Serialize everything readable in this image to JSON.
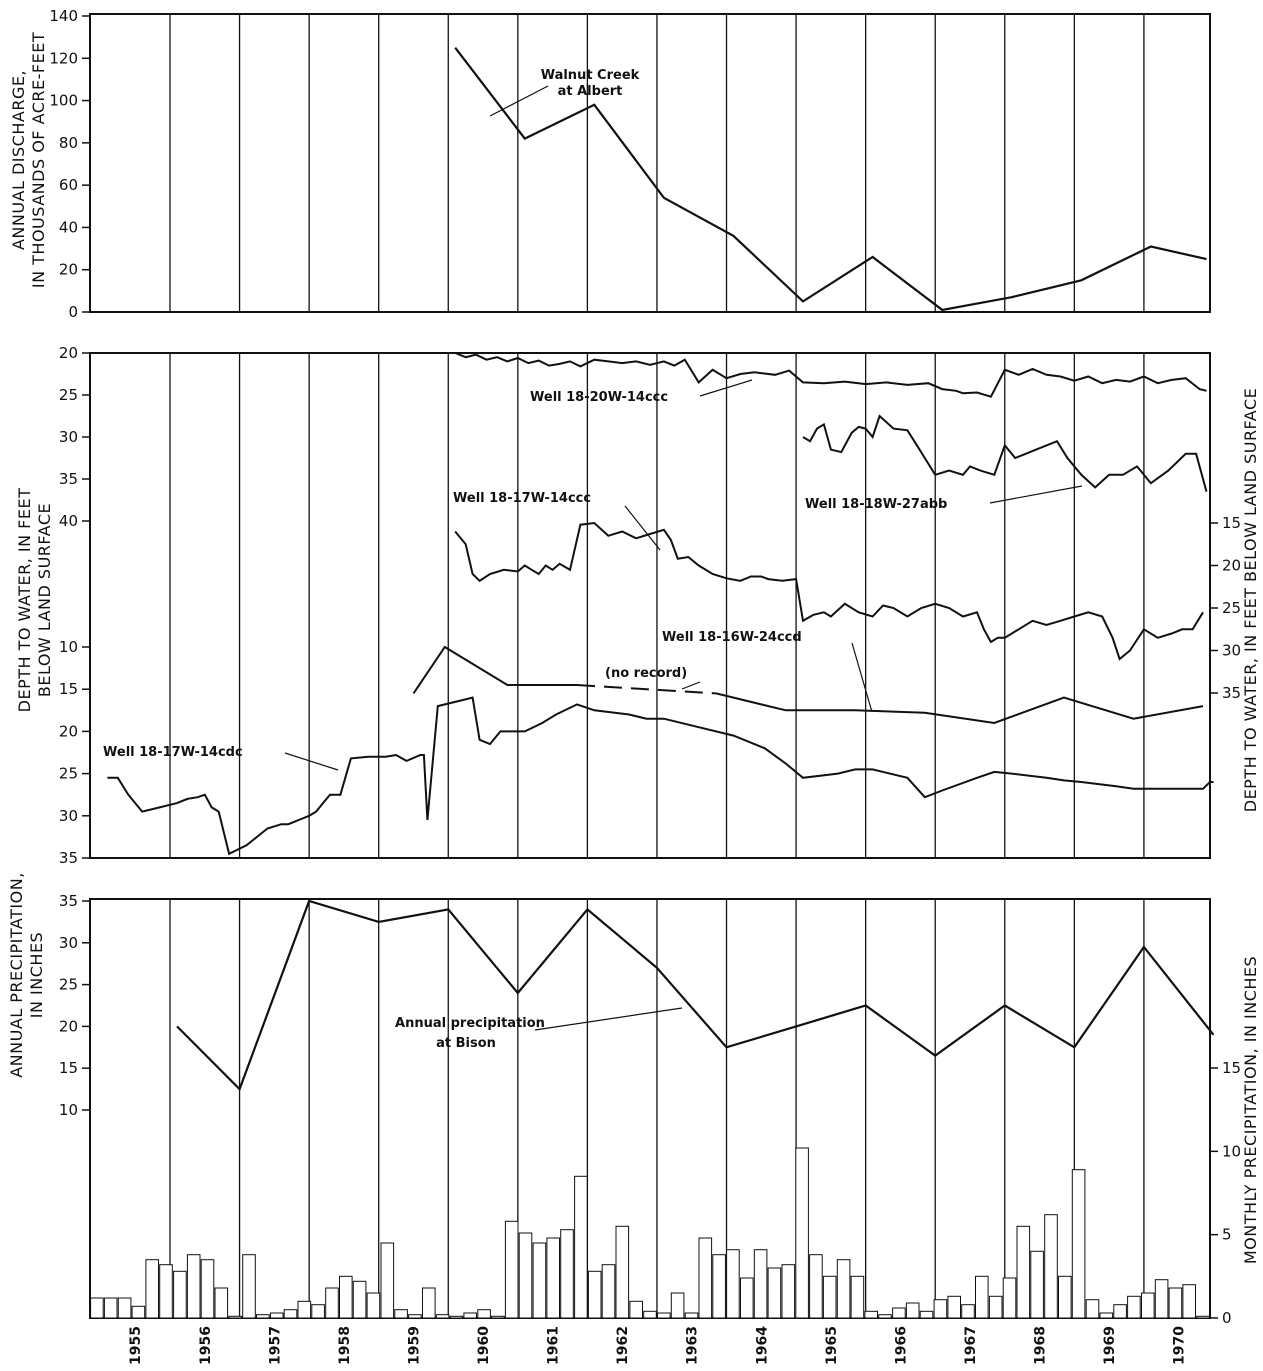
{
  "chart_data": [
    {
      "type": "line",
      "ylabel": [
        "ANNUAL DISCHARGE,",
        "IN THOUSANDS OF ACRE-FEET"
      ],
      "ylim": [
        0,
        140
      ],
      "yticks": [
        "0",
        "20",
        "40",
        "60",
        "80",
        "100",
        "120",
        "140"
      ],
      "grid": "vertical lines at each year boundary",
      "series": [
        {
          "name": "Walnut Creek at Albert",
          "label": [
            "Walnut Creek",
            "at Albert"
          ],
          "x": [
            1960.0,
            1961.0,
            1962.0,
            1963.0,
            1964.0,
            1965.0,
            1966.0,
            1967.0,
            1968.0,
            1969.0,
            1970.0,
            1970.8
          ],
          "y": [
            125,
            82,
            98,
            54,
            36,
            5,
            26,
            1,
            7,
            15,
            31,
            25
          ]
        }
      ]
    },
    {
      "type": "line",
      "ylabel_left": [
        "DEPTH TO WATER, IN FEET",
        "BELOW LAND SURFACE"
      ],
      "ylabel_right": "DEPTH TO WATER, IN FEET BELOW LAND SURFACE",
      "left_scale_upper": {
        "ticks": [
          "20",
          "25",
          "30",
          "35",
          "40"
        ],
        "range": [
          20,
          40
        ]
      },
      "left_scale_lower": {
        "ticks": [
          "10",
          "15",
          "20",
          "25",
          "30",
          "35"
        ],
        "range": [
          5,
          35
        ]
      },
      "right_scale": {
        "ticks": [
          "15",
          "20",
          "25",
          "30",
          "35"
        ],
        "range": [
          10,
          40
        ]
      },
      "no_record_label": "(no record)",
      "series": [
        {
          "name": "Well 18-20W-14ccc",
          "scale": "left_upper",
          "x": [
            1960.0,
            1960.15,
            1960.3,
            1960.45,
            1960.6,
            1960.75,
            1960.9,
            1961.05,
            1961.2,
            1961.35,
            1961.5,
            1961.65,
            1961.8,
            1962.0,
            1962.2,
            1962.4,
            1962.6,
            1962.8,
            1963.0,
            1963.15,
            1963.3,
            1963.5,
            1963.7,
            1963.9,
            1964.1,
            1964.3,
            1964.6,
            1964.8,
            1965.0,
            1965.3,
            1965.6,
            1965.9,
            1966.2,
            1966.5,
            1966.8,
            1967.0,
            1967.2,
            1967.3,
            1967.5,
            1967.7,
            1967.9,
            1968.1,
            1968.3,
            1968.5,
            1968.7,
            1968.9,
            1969.1,
            1969.3,
            1969.5,
            1969.7,
            1969.9,
            1970.1,
            1970.3,
            1970.5,
            1970.7,
            1970.8
          ],
          "y": [
            20.0,
            20.5,
            20.2,
            20.8,
            20.5,
            21.0,
            20.6,
            21.2,
            20.9,
            21.5,
            21.3,
            21.0,
            21.6,
            20.8,
            21.0,
            21.2,
            21.0,
            21.4,
            21.0,
            21.5,
            20.8,
            23.5,
            22.0,
            23.0,
            22.5,
            22.3,
            22.6,
            22.1,
            23.5,
            23.6,
            23.4,
            23.7,
            23.5,
            23.8,
            23.6,
            24.3,
            24.5,
            24.8,
            24.7,
            25.2,
            22.0,
            22.6,
            21.9,
            22.6,
            22.8,
            23.3,
            22.8,
            23.6,
            23.2,
            23.4,
            22.8,
            23.6,
            23.2,
            23.0,
            24.3,
            24.5
          ]
        },
        {
          "name": "Well 18-18W-27abb",
          "scale": "left_upper",
          "x": [
            1965.0,
            1965.1,
            1965.2,
            1965.3,
            1965.4,
            1965.55,
            1965.7,
            1965.8,
            1965.9,
            1966.0,
            1966.1,
            1966.3,
            1966.5,
            1966.6,
            1966.75,
            1966.9,
            1967.1,
            1967.3,
            1967.4,
            1967.55,
            1967.75,
            1967.9,
            1968.05,
            1968.2,
            1968.35,
            1968.5,
            1968.65,
            1968.8,
            1969.0,
            1969.2,
            1969.4,
            1969.6,
            1969.8,
            1970.0,
            1970.25,
            1970.5,
            1970.65,
            1970.8
          ],
          "y": [
            30.0,
            30.5,
            29.0,
            28.5,
            31.5,
            31.8,
            29.5,
            28.8,
            29.0,
            30.0,
            27.5,
            29.0,
            29.2,
            30.5,
            32.5,
            34.5,
            34.0,
            34.5,
            33.5,
            34.0,
            34.5,
            31.0,
            32.5,
            32.0,
            31.5,
            31.0,
            30.5,
            32.5,
            34.5,
            36.0,
            34.5,
            34.5,
            33.5,
            35.5,
            34.0,
            32.0,
            32.0,
            36.5
          ]
        },
        {
          "name": "Well 18-17W-14ccc",
          "scale": "right",
          "x": [
            1960.0,
            1960.15,
            1960.25,
            1960.35,
            1960.5,
            1960.7,
            1960.9,
            1961.0,
            1961.1,
            1961.2,
            1961.3,
            1961.4,
            1961.5,
            1961.65,
            1961.8,
            1962.0,
            1962.2,
            1962.4,
            1962.6,
            1962.8,
            1963.0,
            1963.1,
            1963.2,
            1963.35,
            1963.5,
            1963.7,
            1963.9,
            1964.1,
            1964.25,
            1964.4,
            1964.5,
            1964.7,
            1964.9,
            1965.0,
            1965.15,
            1965.3,
            1965.4,
            1965.6,
            1965.8,
            1966.0,
            1966.15,
            1966.3,
            1966.5,
            1966.7,
            1966.9,
            1967.1,
            1967.3,
            1967.5,
            1967.6,
            1967.7,
            1967.8,
            1967.9,
            1968.1,
            1968.3,
            1968.5,
            1968.7,
            1968.9,
            1969.1,
            1969.3,
            1969.45,
            1969.55,
            1969.7,
            1969.9,
            1970.1,
            1970.3,
            1970.45,
            1970.6,
            1970.75
          ],
          "y": [
            16.0,
            17.5,
            21.0,
            21.8,
            21.0,
            20.5,
            20.7,
            20.0,
            20.5,
            21.0,
            20.0,
            20.5,
            19.8,
            20.5,
            15.2,
            15.0,
            16.5,
            16.0,
            16.8,
            16.3,
            15.8,
            17.0,
            19.2,
            19.0,
            20.0,
            21.0,
            21.5,
            21.8,
            21.3,
            21.3,
            21.6,
            21.8,
            21.6,
            26.5,
            25.8,
            25.5,
            26.0,
            24.5,
            25.5,
            26.0,
            24.7,
            25.0,
            26.0,
            25.0,
            24.5,
            25.0,
            26.0,
            25.5,
            27.5,
            29.0,
            28.5,
            28.5,
            27.5,
            26.5,
            27.0,
            26.5,
            26.0,
            25.5,
            26.0,
            28.5,
            31.0,
            30.0,
            27.5,
            28.5,
            28.0,
            27.5,
            27.5,
            25.5
          ]
        },
        {
          "name": "Well 18-16W-24ccd",
          "scale": "left_lower",
          "x": [
            1959.4,
            1959.85,
            1960.75,
            1961.75,
            1962.75,
            1963.75,
            1964.75,
            1965.75,
            1966.75,
            1967.75,
            1968.75,
            1969.75,
            1970.75
          ],
          "y": [
            15.5,
            10.0,
            14.5,
            14.5,
            15.0,
            15.5,
            17.5,
            17.5,
            17.8,
            19.0,
            16.0,
            18.5,
            17.0
          ],
          "no_record_segment_x": [
            1961.75,
            1963.75
          ]
        },
        {
          "name": "Well 18-17W-14cdc",
          "scale": "left_lower",
          "x": [
            1955.0,
            1955.15,
            1955.3,
            1955.5,
            1955.75,
            1956.0,
            1956.15,
            1956.3,
            1956.4,
            1956.5,
            1956.6,
            1956.75,
            1957.0,
            1957.15,
            1957.3,
            1957.5,
            1957.6,
            1957.75,
            1957.9,
            1958.0,
            1958.1,
            1958.2,
            1958.35,
            1958.5,
            1958.75,
            1958.9,
            1959.0,
            1959.15,
            1959.3,
            1959.5,
            1959.55,
            1959.6,
            1959.75,
            1960.0,
            1960.25,
            1960.35,
            1960.5,
            1960.65,
            1960.8,
            1961.0,
            1961.25,
            1961.45,
            1961.75,
            1962.0,
            1962.5,
            1962.75,
            1963.0,
            1963.5,
            1964.0,
            1964.45,
            1964.75,
            1965.0,
            1965.5,
            1965.75,
            1966.0,
            1966.5,
            1966.75,
            1967.0,
            1967.5,
            1967.75,
            1968.0,
            1968.5,
            1968.75,
            1969.0,
            1969.5,
            1969.75,
            1970.0,
            1970.25,
            1970.5,
            1970.75,
            1970.85,
            1970.9
          ],
          "y": [
            25.5,
            25.5,
            27.5,
            29.5,
            29.0,
            28.5,
            28.0,
            27.8,
            27.5,
            29.0,
            29.5,
            34.5,
            33.5,
            32.5,
            31.5,
            31.0,
            31.0,
            30.5,
            30.0,
            29.5,
            28.5,
            27.5,
            27.5,
            23.2,
            23.0,
            23.0,
            23.0,
            22.8,
            23.5,
            22.8,
            22.8,
            30.5,
            17.0,
            16.5,
            16.0,
            21.0,
            21.5,
            20.0,
            20.0,
            20.0,
            19.0,
            18.0,
            16.8,
            17.5,
            18.0,
            18.5,
            18.5,
            19.5,
            20.5,
            22.0,
            23.8,
            25.5,
            25.0,
            24.5,
            24.5,
            25.5,
            27.8,
            27.0,
            25.5,
            24.8,
            25.0,
            25.5,
            25.8,
            26.0,
            26.5,
            26.8,
            26.8,
            26.8,
            26.8,
            26.8,
            26.0,
            26.0
          ]
        }
      ]
    },
    {
      "type": "line+bar",
      "ylabel_left": [
        "ANNUAL PRECIPITATION,",
        "IN INCHES"
      ],
      "ylabel_right": "MONTHLY PRECIPITATION, IN INCHES",
      "left_ticks": [
        "10",
        "15",
        "20",
        "25",
        "30",
        "35"
      ],
      "left_ylim": [
        10,
        35
      ],
      "right_ticks": [
        "0",
        "5",
        "10",
        "15"
      ],
      "right_ylim": [
        0,
        15
      ],
      "x_tick_labels": [
        "1955",
        "1956",
        "1957",
        "1958",
        "1959",
        "1960",
        "1961",
        "1962",
        "1963",
        "1964",
        "1965",
        "1966",
        "1967",
        "1968",
        "1969",
        "1970"
      ],
      "annual": {
        "name": "Annual precipitation at Bison",
        "label": [
          "Annual precipitation",
          "at Bison"
        ],
        "x": [
          1956.0,
          1956.9,
          1957.9,
          1958.9,
          1959.9,
          1960.9,
          1961.9,
          1962.9,
          1963.9,
          1964.9,
          1965.9,
          1966.9,
          1967.9,
          1968.9,
          1969.9,
          1970.9
        ],
        "y": [
          20.0,
          12.5,
          35.0,
          32.5,
          34.0,
          24.0,
          34.0,
          27.0,
          17.5,
          20.0,
          22.5,
          16.5,
          22.5,
          17.5,
          29.5,
          19.0
        ]
      },
      "monthly": {
        "start": "1955-01",
        "values": [
          1.2,
          1.2,
          1.2,
          0.7,
          3.5,
          3.2,
          2.8,
          3.8,
          3.5,
          1.8,
          0.1,
          3.8,
          0.2,
          0.3,
          0.5,
          1.0,
          0.8,
          1.8,
          2.5,
          2.2,
          1.5,
          4.5,
          0.5,
          0.2,
          1.8,
          0.2,
          0.1,
          0.3,
          0.5,
          0.1,
          5.8,
          5.1,
          4.5,
          4.8,
          5.3,
          8.5,
          2.8,
          3.2,
          5.5,
          1.0,
          0.4,
          0.3,
          1.5,
          0.3,
          4.8,
          3.8,
          4.1,
          2.4,
          4.1,
          3.0,
          3.2,
          10.2,
          3.8,
          2.5,
          3.5,
          2.5,
          0.4,
          0.2,
          0.6,
          0.9,
          0.4,
          1.1,
          1.3,
          0.8,
          2.5,
          1.3,
          2.4,
          5.5,
          4.0,
          6.2,
          2.5,
          8.9,
          1.1,
          0.3,
          0.8,
          1.3,
          1.5,
          2.3,
          1.8,
          2.0,
          0.1
        ]
      }
    }
  ]
}
